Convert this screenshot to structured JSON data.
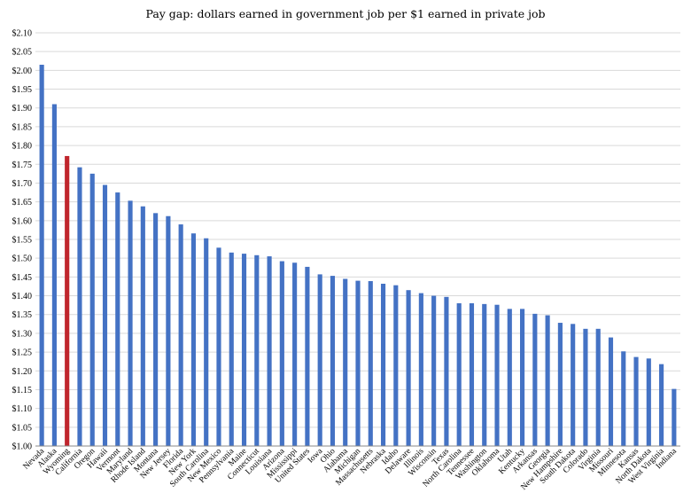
{
  "chart_data": {
    "type": "bar",
    "title": "Pay gap: dollars earned in government job per $1 earned in private job",
    "xlabel": "",
    "ylabel": "",
    "ylim": [
      1.0,
      2.1
    ],
    "ytick_step": 0.05,
    "ytick_format": "$",
    "grid": true,
    "legend": "none",
    "bar_color": "#4472c4",
    "highlight_color": "#c0262d",
    "highlight_category": "Wyoming",
    "categories": [
      "Nevada",
      "Alaska",
      "Wyoming",
      "California",
      "Oregon",
      "Hawaii",
      "Vermont",
      "Maryland",
      "Rhode Island",
      "Montana",
      "New Jersey",
      "Florida",
      "New York",
      "South Carolina",
      "New Mexico",
      "Pennsylvania",
      "Maine",
      "Connecticut",
      "Louisiana",
      "Arizona",
      "Mississippi",
      "United States",
      "Iowa",
      "Ohio",
      "Alabama",
      "Michigan",
      "Massachusetts",
      "Nebraska",
      "Idaho",
      "Delaware",
      "Illinois",
      "Wisconsin",
      "Texas",
      "North Carolina",
      "Tennessee",
      "Washington",
      "Oklahoma",
      "Utah",
      "Kentucky",
      "Arkansas",
      "Georgia",
      "New Hampshire",
      "South Dakota",
      "Colorado",
      "Virginia",
      "Missouri",
      "Minnesota",
      "Kansas",
      "North Dakota",
      "West Virginia",
      "Indiana"
    ],
    "values": [
      2.015,
      1.91,
      1.772,
      1.742,
      1.725,
      1.695,
      1.675,
      1.653,
      1.638,
      1.62,
      1.612,
      1.59,
      1.566,
      1.553,
      1.528,
      1.515,
      1.512,
      1.508,
      1.505,
      1.492,
      1.488,
      1.477,
      1.457,
      1.453,
      1.445,
      1.44,
      1.439,
      1.432,
      1.428,
      1.415,
      1.407,
      1.4,
      1.397,
      1.38,
      1.38,
      1.378,
      1.376,
      1.365,
      1.365,
      1.352,
      1.348,
      1.328,
      1.325,
      1.312,
      1.312,
      1.289,
      1.252,
      1.237,
      1.233,
      1.218,
      1.152
    ]
  }
}
